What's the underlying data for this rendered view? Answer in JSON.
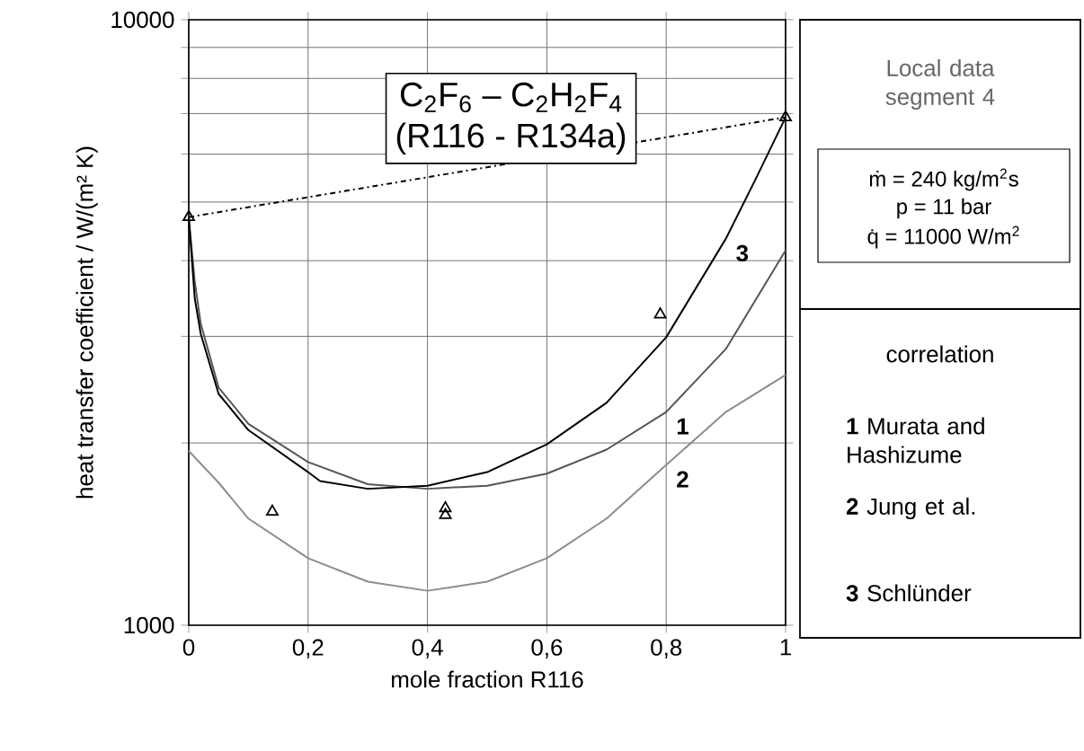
{
  "chart_data": {
    "type": "line",
    "title": "C$_{2}$F$_{6}$ – C$_{2}$H$_{2}$F$_{4}$",
    "subtitle": "(R116 - R134a)",
    "xlabel": "mole fraction R116",
    "ylabel": "heat transfer coefficient / W/(m² K)",
    "log": "y",
    "grid": true,
    "legend": "right",
    "xlim": [
      0,
      1
    ],
    "ylim": [
      1000,
      10000
    ],
    "xticks": [
      0,
      {
        "value": 0.2,
        "label": "0,2"
      },
      {
        "value": 0.4,
        "label": "0,4"
      },
      {
        "value": 0.6,
        "label": "0,6"
      },
      {
        "value": 0.8,
        "label": "0,8"
      },
      1
    ],
    "yticks": [
      1000,
      {
        "value": 2000,
        "label": null
      },
      {
        "value": 3000,
        "label": null
      },
      {
        "value": 4000,
        "label": null
      },
      {
        "value": 5000,
        "label": null
      },
      {
        "value": 6000,
        "label": null
      },
      {
        "value": 7000,
        "label": null
      },
      {
        "value": 8000,
        "label": null
      },
      {
        "value": 9000,
        "label": null
      },
      10000
    ],
    "series": [
      {
        "name": "1",
        "color": "#555555",
        "marker": "none",
        "x": [
          0,
          0.01,
          0.02,
          0.05,
          0.1,
          0.2,
          0.3,
          0.4,
          0.5,
          0.6,
          0.7,
          0.8,
          0.9,
          1
        ],
        "values": [
          4720,
          3700,
          3150,
          2470,
          2150,
          1860,
          1710,
          1680,
          1700,
          1780,
          1950,
          2250,
          2860,
          4160
        ]
      },
      {
        "name": "2",
        "color": "#8c8c8c",
        "marker": "none",
        "x": [
          0,
          0.05,
          0.1,
          0.2,
          0.3,
          0.4,
          0.5,
          0.6,
          0.7,
          0.8,
          0.9,
          1
        ],
        "values": [
          1940,
          1720,
          1500,
          1290,
          1180,
          1140,
          1180,
          1290,
          1500,
          1840,
          2250,
          2590
        ]
      },
      {
        "name": "3",
        "color": "#000000",
        "marker": "none",
        "x": [
          0,
          0.01,
          0.02,
          0.05,
          0.1,
          0.2,
          0.22,
          0.3,
          0.4,
          0.5,
          0.6,
          0.7,
          0.8,
          0.9,
          0.95,
          1
        ],
        "values": [
          4720,
          3470,
          3030,
          2410,
          2100,
          1790,
          1730,
          1680,
          1700,
          1790,
          1990,
          2330,
          2990,
          4350,
          5460,
          6900
        ]
      },
      {
        "type": "line",
        "color": "#000000",
        "marker": "none",
        "line_style": "dashed",
        "x": [
          0,
          1
        ],
        "values": [
          4720,
          6900
        ]
      },
      {
        "type": "scatter",
        "color": "#000000",
        "marker": "triangle",
        "x": [
          0,
          0.14,
          0.43,
          0.43,
          0.79,
          1
        ],
        "values": [
          4720,
          1540,
          1560,
          1520,
          3260,
          6900
        ]
      }
    ],
    "annotations": [
      "Local data segment 4",
      "ṁ = 240 kg/m$^{2}$s",
      "p = 11 bar",
      "q̇ = 11000 W/m$^{2}$",
      "correlation",
      "**1** Murata and Hashizume",
      "**2** Jung et al.",
      "**3** Schlünder"
    ]
  }
}
